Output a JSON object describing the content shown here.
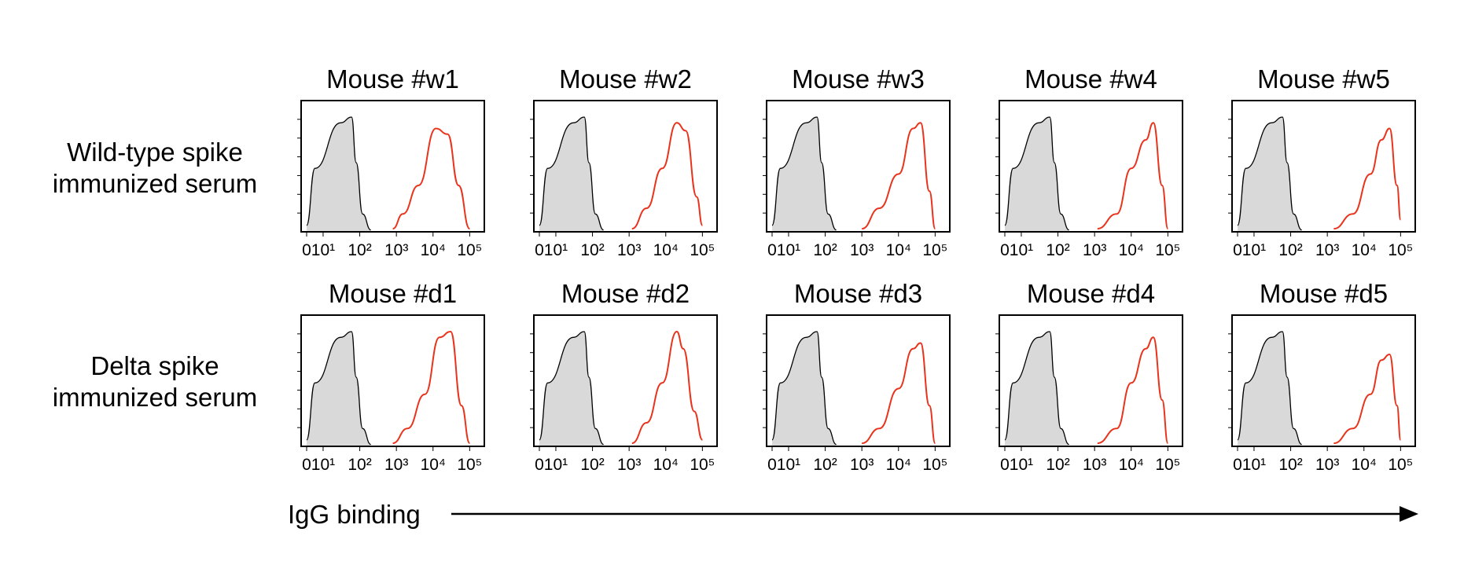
{
  "rows": [
    {
      "label_lines": [
        "Wild-type spike",
        "immunized serum"
      ]
    },
    {
      "label_lines": [
        "Delta spike",
        "immunized serum"
      ]
    }
  ],
  "x_axis_label": "IgG binding",
  "tick_labels": [
    "0",
    "10¹",
    "10²",
    "10³",
    "10⁴",
    "10⁵"
  ],
  "colors": {
    "control_fill": "#d9d9d9",
    "control_line": "#000000",
    "sample_line": "#e8341c"
  },
  "chart_data": [
    {
      "type": "area",
      "title": "Mouse #w1",
      "row": 0,
      "x_scale": "biexponential",
      "xlim": [
        0,
        100000
      ],
      "x_ticks": [
        0,
        10,
        100,
        1000,
        10000,
        100000
      ],
      "control": {
        "x": [
          0,
          5,
          30,
          60,
          80,
          120,
          200
        ],
        "y": [
          0.05,
          0.55,
          0.95,
          1.0,
          0.6,
          0.15,
          0.01
        ]
      },
      "sample": {
        "x": [
          800,
          1500,
          4000,
          12000,
          25000,
          50000,
          100000
        ],
        "y": [
          0.02,
          0.15,
          0.4,
          0.9,
          0.85,
          0.4,
          0.02
        ]
      }
    },
    {
      "type": "area",
      "title": "Mouse #w2",
      "row": 0,
      "x_scale": "biexponential",
      "xlim": [
        0,
        100000
      ],
      "x_ticks": [
        0,
        10,
        100,
        1000,
        10000,
        100000
      ],
      "control": {
        "x": [
          0,
          5,
          30,
          60,
          80,
          120,
          200
        ],
        "y": [
          0.05,
          0.55,
          0.95,
          1.0,
          0.6,
          0.15,
          0.01
        ]
      },
      "sample": {
        "x": [
          1200,
          3000,
          8000,
          20000,
          35000,
          70000,
          100000
        ],
        "y": [
          0.02,
          0.2,
          0.55,
          0.95,
          0.88,
          0.3,
          0.05
        ]
      }
    },
    {
      "type": "area",
      "title": "Mouse #w3",
      "row": 0,
      "x_scale": "biexponential",
      "xlim": [
        0,
        100000
      ],
      "x_ticks": [
        0,
        10,
        100,
        1000,
        10000,
        100000
      ],
      "control": {
        "x": [
          0,
          5,
          30,
          60,
          80,
          120,
          200
        ],
        "y": [
          0.05,
          0.55,
          0.95,
          1.0,
          0.6,
          0.15,
          0.01
        ]
      },
      "sample": {
        "x": [
          1000,
          3000,
          10000,
          25000,
          40000,
          70000,
          100000
        ],
        "y": [
          0.02,
          0.2,
          0.5,
          0.9,
          0.95,
          0.35,
          0.02
        ]
      }
    },
    {
      "type": "area",
      "title": "Mouse #w4",
      "row": 0,
      "x_scale": "biexponential",
      "xlim": [
        0,
        100000
      ],
      "x_ticks": [
        0,
        10,
        100,
        1000,
        10000,
        100000
      ],
      "control": {
        "x": [
          0,
          5,
          30,
          60,
          80,
          120,
          200
        ],
        "y": [
          0.05,
          0.55,
          0.95,
          1.0,
          0.6,
          0.15,
          0.01
        ]
      },
      "sample": {
        "x": [
          1200,
          4000,
          10000,
          25000,
          40000,
          70000,
          100000
        ],
        "y": [
          0.02,
          0.15,
          0.55,
          0.8,
          0.95,
          0.4,
          0.02
        ]
      }
    },
    {
      "type": "area",
      "title": "Mouse #w5",
      "row": 0,
      "x_scale": "biexponential",
      "xlim": [
        0,
        100000
      ],
      "x_ticks": [
        0,
        10,
        100,
        1000,
        10000,
        100000
      ],
      "control": {
        "x": [
          0,
          5,
          30,
          60,
          80,
          120,
          200
        ],
        "y": [
          0.05,
          0.55,
          0.95,
          1.0,
          0.6,
          0.15,
          0.01
        ]
      },
      "sample": {
        "x": [
          1500,
          5000,
          15000,
          30000,
          50000,
          80000,
          100000
        ],
        "y": [
          0.02,
          0.15,
          0.5,
          0.8,
          0.9,
          0.4,
          0.1
        ]
      }
    },
    {
      "type": "area",
      "title": "Mouse #d1",
      "row": 1,
      "x_scale": "biexponential",
      "xlim": [
        0,
        100000
      ],
      "x_ticks": [
        0,
        10,
        100,
        1000,
        10000,
        100000
      ],
      "control": {
        "x": [
          0,
          5,
          30,
          60,
          80,
          120,
          200
        ],
        "y": [
          0.05,
          0.55,
          0.95,
          1.0,
          0.6,
          0.15,
          0.01
        ]
      },
      "sample": {
        "x": [
          800,
          2000,
          6000,
          15000,
          30000,
          60000,
          100000
        ],
        "y": [
          0.02,
          0.15,
          0.45,
          0.95,
          1.0,
          0.35,
          0.02
        ]
      }
    },
    {
      "type": "area",
      "title": "Mouse #d2",
      "row": 1,
      "x_scale": "biexponential",
      "xlim": [
        0,
        100000
      ],
      "x_ticks": [
        0,
        10,
        100,
        1000,
        10000,
        100000
      ],
      "control": {
        "x": [
          0,
          5,
          30,
          60,
          80,
          120,
          200
        ],
        "y": [
          0.05,
          0.55,
          0.95,
          1.0,
          0.6,
          0.15,
          0.01
        ]
      },
      "sample": {
        "x": [
          1200,
          3000,
          8000,
          20000,
          30000,
          60000,
          100000
        ],
        "y": [
          0.02,
          0.2,
          0.55,
          1.0,
          0.85,
          0.3,
          0.05
        ]
      }
    },
    {
      "type": "area",
      "title": "Mouse #d3",
      "row": 1,
      "x_scale": "biexponential",
      "xlim": [
        0,
        100000
      ],
      "x_ticks": [
        0,
        10,
        100,
        1000,
        10000,
        100000
      ],
      "control": {
        "x": [
          0,
          5,
          30,
          60,
          80,
          120,
          200
        ],
        "y": [
          0.05,
          0.55,
          0.95,
          1.0,
          0.6,
          0.15,
          0.01
        ]
      },
      "sample": {
        "x": [
          1000,
          3000,
          10000,
          25000,
          40000,
          70000,
          100000
        ],
        "y": [
          0.02,
          0.15,
          0.5,
          0.85,
          0.9,
          0.35,
          0.02
        ]
      }
    },
    {
      "type": "area",
      "title": "Mouse #d4",
      "row": 1,
      "x_scale": "biexponential",
      "xlim": [
        0,
        100000
      ],
      "x_ticks": [
        0,
        10,
        100,
        1000,
        10000,
        100000
      ],
      "control": {
        "x": [
          0,
          5,
          30,
          60,
          80,
          120,
          200
        ],
        "y": [
          0.05,
          0.55,
          0.95,
          1.0,
          0.6,
          0.15,
          0.01
        ]
      },
      "sample": {
        "x": [
          1200,
          4000,
          10000,
          25000,
          40000,
          70000,
          100000
        ],
        "y": [
          0.02,
          0.15,
          0.55,
          0.85,
          0.95,
          0.4,
          0.02
        ]
      }
    },
    {
      "type": "area",
      "title": "Mouse #d5",
      "row": 1,
      "x_scale": "biexponential",
      "xlim": [
        0,
        100000
      ],
      "x_ticks": [
        0,
        10,
        100,
        1000,
        10000,
        100000
      ],
      "control": {
        "x": [
          0,
          5,
          30,
          60,
          80,
          120,
          200
        ],
        "y": [
          0.05,
          0.55,
          0.95,
          1.0,
          0.6,
          0.15,
          0.01
        ]
      },
      "sample": {
        "x": [
          1500,
          5000,
          15000,
          30000,
          50000,
          80000,
          100000
        ],
        "y": [
          0.02,
          0.15,
          0.45,
          0.75,
          0.8,
          0.35,
          0.05
        ]
      }
    }
  ]
}
